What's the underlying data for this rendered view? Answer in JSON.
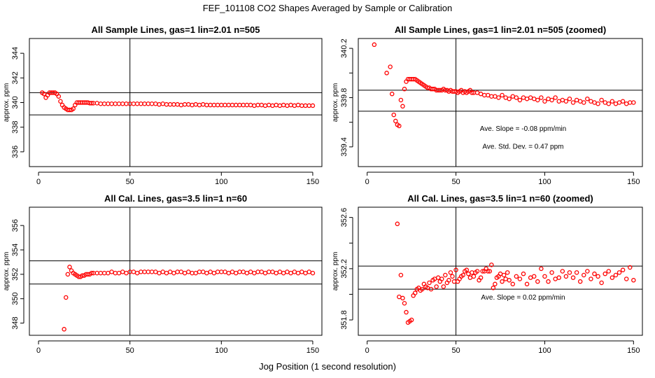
{
  "title": "FEF_101108  CO2 Shapes Averaged by Sample or Calibration",
  "x_axis_title": "Jog Position (1 second resolution)",
  "colors": {
    "points": "#ff0000",
    "axes": "#000000"
  },
  "chart_data": [
    {
      "type": "scatter",
      "title": "All Sample Lines, gas=1 lin=2.01 n=505",
      "ylabel": "approx. ppm",
      "xlim": [
        -5,
        155
      ],
      "ylim": [
        334.8,
        345.2
      ],
      "x_ticks": [
        0,
        50,
        100,
        150
      ],
      "y_ticks": [
        336,
        338,
        340,
        342,
        344
      ],
      "vline": 50,
      "hlines": [
        340.8,
        339.0
      ],
      "annotations": [],
      "x": [
        2,
        3,
        4,
        5,
        6,
        7,
        8,
        9,
        10,
        11,
        12,
        13,
        14,
        15,
        16,
        17,
        18,
        19,
        20,
        21,
        22,
        23,
        24,
        25,
        26,
        27,
        28,
        29,
        30,
        32,
        34,
        36,
        38,
        40,
        42,
        44,
        46,
        48,
        50,
        52,
        54,
        56,
        58,
        60,
        62,
        64,
        66,
        68,
        70,
        72,
        74,
        76,
        78,
        80,
        82,
        84,
        86,
        88,
        90,
        92,
        94,
        96,
        98,
        100,
        102,
        104,
        106,
        108,
        110,
        112,
        114,
        116,
        118,
        120,
        122,
        124,
        126,
        128,
        130,
        132,
        134,
        136,
        138,
        140,
        142,
        144,
        146,
        148,
        150
      ],
      "y": [
        340.8,
        340.7,
        340.4,
        340.6,
        340.8,
        340.8,
        340.8,
        340.8,
        340.7,
        340.5,
        340.1,
        339.8,
        339.6,
        339.5,
        339.4,
        339.4,
        339.4,
        339.5,
        339.8,
        340.0,
        340.0,
        340.0,
        340.0,
        340.0,
        340.0,
        340.0,
        339.95,
        339.95,
        339.95,
        339.95,
        339.9,
        339.9,
        339.9,
        339.9,
        339.9,
        339.9,
        339.9,
        339.9,
        339.9,
        339.9,
        339.9,
        339.9,
        339.9,
        339.9,
        339.9,
        339.9,
        339.85,
        339.9,
        339.85,
        339.85,
        339.85,
        339.85,
        339.8,
        339.85,
        339.85,
        339.8,
        339.85,
        339.8,
        339.85,
        339.8,
        339.8,
        339.8,
        339.8,
        339.8,
        339.8,
        339.8,
        339.8,
        339.8,
        339.8,
        339.8,
        339.8,
        339.8,
        339.75,
        339.8,
        339.8,
        339.75,
        339.8,
        339.75,
        339.8,
        339.75,
        339.8,
        339.75,
        339.8,
        339.75,
        339.8,
        339.75,
        339.75,
        339.75,
        339.75
      ]
    },
    {
      "type": "scatter",
      "title": "All Sample Lines, gas=1 lin=2.01 n=505 (zoomed)",
      "ylabel": "approx. ppm",
      "xlim": [
        -5,
        155
      ],
      "ylim": [
        339.24,
        340.28
      ],
      "x_ticks": [
        0,
        50,
        100,
        150
      ],
      "y_ticks": [
        339.4,
        339.8,
        340.2
      ],
      "y_ticks_minor": [
        339.6,
        340.0
      ],
      "vline": 50,
      "hlines": [
        339.86,
        339.69
      ],
      "annotations": [
        "Ave. Slope =  -0.08  ppm/min",
        "Ave. Std. Dev. =  0.47  ppm"
      ],
      "x": [
        4,
        11,
        12,
        13,
        14,
        15,
        16,
        17,
        18,
        19,
        20,
        21,
        22,
        23,
        24,
        25,
        26,
        27,
        28,
        29,
        30,
        31,
        32,
        33,
        34,
        35,
        36,
        37,
        38,
        39,
        40,
        41,
        42,
        43,
        44,
        45,
        46,
        47,
        48,
        49,
        50,
        51,
        52,
        53,
        54,
        55,
        56,
        57,
        58,
        59,
        60,
        62,
        64,
        66,
        68,
        70,
        72,
        74,
        76,
        78,
        80,
        82,
        84,
        86,
        88,
        90,
        92,
        94,
        96,
        98,
        100,
        102,
        104,
        106,
        108,
        110,
        112,
        114,
        116,
        118,
        120,
        122,
        124,
        126,
        128,
        130,
        132,
        134,
        136,
        138,
        140,
        142,
        144,
        146,
        148,
        150
      ],
      "y": [
        340.23,
        340.0,
        340.3,
        340.05,
        339.83,
        339.66,
        339.61,
        339.58,
        339.57,
        339.78,
        339.73,
        339.87,
        339.93,
        339.95,
        339.95,
        339.95,
        339.95,
        339.95,
        339.94,
        339.93,
        339.92,
        339.91,
        339.9,
        339.89,
        339.88,
        339.88,
        339.87,
        339.87,
        339.87,
        339.86,
        339.86,
        339.86,
        339.86,
        339.87,
        339.86,
        339.86,
        339.85,
        339.86,
        339.85,
        339.85,
        339.85,
        339.84,
        339.85,
        339.86,
        339.84,
        339.85,
        339.84,
        339.85,
        339.86,
        339.84,
        339.84,
        339.84,
        339.83,
        339.82,
        339.82,
        339.81,
        339.81,
        339.8,
        339.82,
        339.8,
        339.79,
        339.81,
        339.8,
        339.78,
        339.8,
        339.79,
        339.8,
        339.79,
        339.78,
        339.8,
        339.77,
        339.79,
        339.78,
        339.8,
        339.77,
        339.78,
        339.77,
        339.79,
        339.76,
        339.78,
        339.77,
        339.76,
        339.79,
        339.77,
        339.76,
        339.75,
        339.78,
        339.76,
        339.75,
        339.77,
        339.75,
        339.76,
        339.77,
        339.75,
        339.76,
        339.76
      ]
    },
    {
      "type": "scatter",
      "title": "All Cal. Lines, gas=3.5 lin=1 n=60",
      "ylabel": "approx. ppm",
      "xlim": [
        -5,
        155
      ],
      "ylim": [
        347.0,
        357.5
      ],
      "x_ticks": [
        0,
        50,
        100,
        150
      ],
      "y_ticks": [
        348,
        350,
        352,
        354,
        356
      ],
      "vline": 50,
      "hlines": [
        353.1,
        351.2
      ],
      "annotations": [],
      "x": [
        14,
        15,
        16,
        17,
        18,
        19,
        20,
        21,
        22,
        23,
        24,
        25,
        26,
        27,
        28,
        29,
        30,
        32,
        34,
        36,
        38,
        40,
        42,
        44,
        46,
        48,
        50,
        52,
        54,
        56,
        58,
        60,
        62,
        64,
        66,
        68,
        70,
        72,
        74,
        76,
        78,
        80,
        82,
        84,
        86,
        88,
        90,
        92,
        94,
        96,
        98,
        100,
        102,
        104,
        106,
        108,
        110,
        112,
        114,
        116,
        118,
        120,
        122,
        124,
        126,
        128,
        130,
        132,
        134,
        136,
        138,
        140,
        142,
        144,
        146,
        148,
        150
      ],
      "y": [
        347.5,
        350.1,
        352.0,
        352.6,
        352.3,
        352.1,
        352.0,
        351.9,
        351.8,
        351.8,
        351.9,
        351.9,
        352.0,
        352.0,
        352.0,
        352.1,
        352.1,
        352.1,
        352.1,
        352.1,
        352.1,
        352.2,
        352.1,
        352.1,
        352.2,
        352.1,
        352.2,
        352.2,
        352.1,
        352.2,
        352.2,
        352.2,
        352.2,
        352.2,
        352.1,
        352.2,
        352.1,
        352.2,
        352.1,
        352.2,
        352.2,
        352.1,
        352.2,
        352.1,
        352.1,
        352.2,
        352.2,
        352.1,
        352.2,
        352.1,
        352.2,
        352.2,
        352.2,
        352.1,
        352.2,
        352.1,
        352.2,
        352.2,
        352.1,
        352.2,
        352.1,
        352.2,
        352.2,
        352.1,
        352.2,
        352.2,
        352.1,
        352.2,
        352.1,
        352.2,
        352.1,
        352.2,
        352.1,
        352.2,
        352.1,
        352.2,
        352.1
      ]
    },
    {
      "type": "scatter",
      "title": "All Cal. Lines, gas=3.5 lin=1 n=60 (zoomed)",
      "ylabel": "approx. ppm",
      "xlim": [
        -5,
        155
      ],
      "ylim": [
        351.68,
        352.68
      ],
      "x_ticks": [
        0,
        50,
        100,
        150
      ],
      "y_ticks": [
        351.8,
        352.2,
        352.6
      ],
      "y_ticks_minor": [
        352.0,
        352.4
      ],
      "vline": 50,
      "hlines": [
        352.22,
        352.04
      ],
      "annotations": [
        "Ave. Slope =  0.02  ppm/min"
      ],
      "x": [
        17,
        18,
        19,
        20,
        21,
        22,
        23,
        24,
        25,
        26,
        27,
        28,
        29,
        30,
        31,
        32,
        33,
        34,
        35,
        36,
        37,
        38,
        39,
        40,
        41,
        42,
        43,
        44,
        45,
        46,
        47,
        48,
        49,
        50,
        51,
        52,
        53,
        54,
        55,
        56,
        57,
        58,
        59,
        60,
        61,
        62,
        63,
        64,
        65,
        66,
        67,
        68,
        69,
        70,
        71,
        72,
        73,
        74,
        75,
        76,
        77,
        78,
        79,
        80,
        82,
        84,
        86,
        88,
        90,
        92,
        94,
        96,
        98,
        100,
        102,
        104,
        106,
        108,
        110,
        112,
        114,
        116,
        118,
        120,
        122,
        124,
        126,
        128,
        130,
        132,
        134,
        136,
        138,
        140,
        142,
        144,
        146,
        148,
        150
      ],
      "y": [
        352.55,
        351.98,
        352.15,
        351.97,
        351.93,
        351.86,
        351.78,
        351.79,
        351.8,
        351.99,
        352.01,
        352.04,
        352.05,
        352.03,
        352.04,
        352.08,
        352.06,
        352.05,
        352.09,
        352.04,
        352.11,
        352.12,
        352.06,
        352.13,
        352.1,
        352.12,
        352.06,
        352.15,
        352.09,
        352.11,
        352.17,
        352.14,
        352.1,
        352.19,
        352.1,
        352.12,
        352.14,
        352.15,
        352.18,
        352.19,
        352.16,
        352.13,
        352.17,
        352.14,
        352.17,
        352.18,
        352.11,
        352.13,
        352.18,
        352.18,
        352.2,
        352.18,
        352.18,
        352.23,
        352.05,
        352.08,
        352.13,
        352.14,
        352.16,
        352.1,
        352.15,
        352.12,
        352.17,
        352.11,
        352.08,
        352.14,
        352.12,
        352.16,
        352.08,
        352.13,
        352.14,
        352.1,
        352.2,
        352.14,
        352.1,
        352.17,
        352.12,
        352.13,
        352.18,
        352.14,
        352.17,
        352.13,
        352.17,
        352.1,
        352.15,
        352.18,
        352.12,
        352.16,
        352.14,
        352.09,
        352.16,
        352.18,
        352.13,
        352.15,
        352.17,
        352.19,
        352.12,
        352.21,
        352.11
      ]
    }
  ]
}
